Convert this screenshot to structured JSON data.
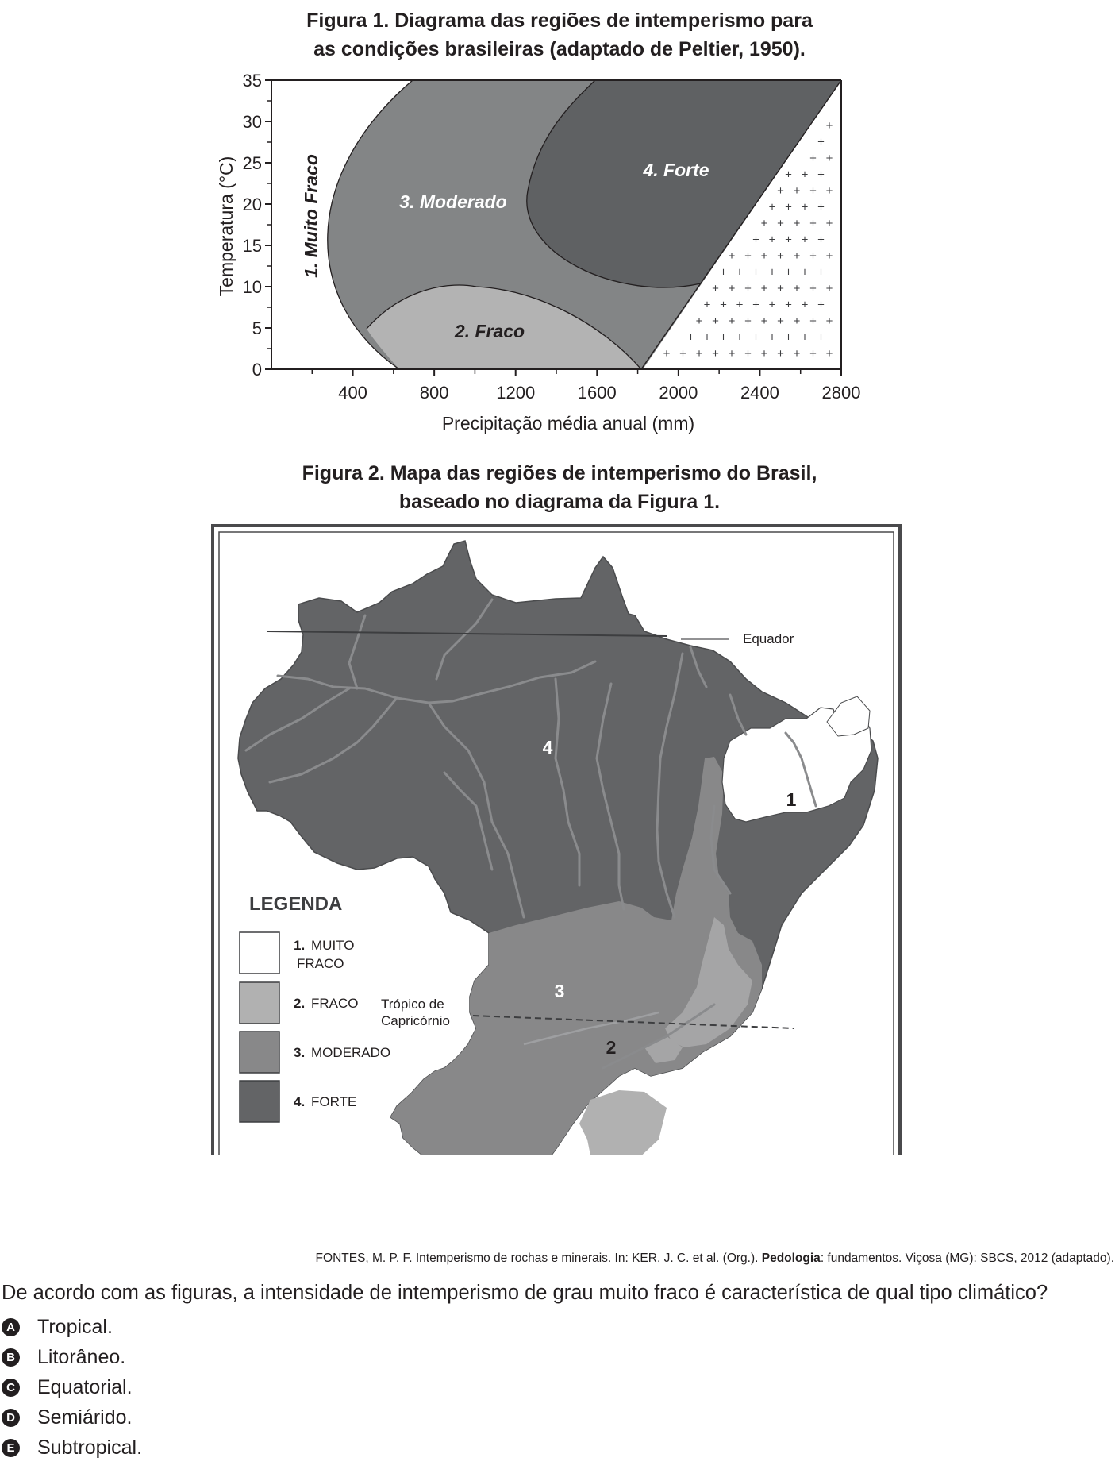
{
  "figure1": {
    "title_line1": "Figura 1. Diagrama das regiões de intemperismo para",
    "title_line2": "as condições brasileiras (adaptado de Peltier, 1950).",
    "ylabel": "Temperatura (°C)",
    "xlabel": "Precipitação média anual (mm)",
    "y_ticks": [
      "0",
      "5",
      "10",
      "15",
      "20",
      "25",
      "30",
      "35"
    ],
    "x_ticks": [
      "400",
      "800",
      "1200",
      "1600",
      "2000",
      "2400",
      "2800"
    ],
    "regions": {
      "r1": "1. Muito Fraco",
      "r2": "2. Fraco",
      "r3": "3. Moderado",
      "r4": "4. Forte"
    },
    "colors": {
      "r2": "#b3b3b3",
      "r3": "#838586",
      "r4": "#5f6163",
      "axis": "#231f20"
    }
  },
  "chart_data": {
    "type": "area",
    "title": "Figura 1. Diagrama das regiões de intemperismo para as condições brasileiras (adaptado de Peltier, 1950).",
    "xlabel": "Precipitação média anual (mm)",
    "ylabel": "Temperatura (°C)",
    "xlim": [
      0,
      2800
    ],
    "ylim": [
      0,
      35
    ],
    "x_ticks": [
      400,
      800,
      1200,
      1600,
      2000,
      2400,
      2800
    ],
    "y_ticks": [
      0,
      5,
      10,
      15,
      20,
      25,
      30,
      35
    ],
    "series": [
      {
        "name": "1. Muito Fraco",
        "region_points": [
          [
            0,
            0
          ],
          [
            610,
            0
          ],
          [
            350,
            20
          ],
          [
            700,
            35
          ],
          [
            0,
            35
          ]
        ]
      },
      {
        "name": "2. Fraco",
        "region_points": [
          [
            470,
            5
          ],
          [
            930,
            10
          ],
          [
            1820,
            0
          ],
          [
            610,
            0
          ]
        ]
      },
      {
        "name": "3. Moderado",
        "region_points": [
          [
            610,
            0
          ],
          [
            350,
            20
          ],
          [
            700,
            35
          ],
          [
            1600,
            35
          ],
          [
            1270,
            20
          ],
          [
            2120,
            10
          ],
          [
            1820,
            0
          ]
        ]
      },
      {
        "name": "4. Forte",
        "region_points": [
          [
            1600,
            35
          ],
          [
            2800,
            35
          ],
          [
            2120,
            10
          ],
          [
            1270,
            20
          ]
        ]
      }
    ],
    "legend": "none",
    "grid": false
  },
  "figure2": {
    "title_line1": "Figura 2. Mapa das regiões de intemperismo do Brasil,",
    "title_line2": "baseado no diagrama da Figura 1.",
    "equator_label": "Equador",
    "tropic_label_1": "Trópico de",
    "tropic_label_2": "Capricórnio",
    "region_numbers": [
      "1",
      "2",
      "3",
      "4"
    ],
    "legend_title": "LEGENDA",
    "legend": [
      {
        "num": "1.",
        "text": "MUITO",
        "text2": "FRACO",
        "color": "#ffffff"
      },
      {
        "num": "2.",
        "text": "FRACO",
        "color": "#b1b1b1"
      },
      {
        "num": "3.",
        "text": "MODERADO",
        "color": "#888889"
      },
      {
        "num": "4.",
        "text": "FORTE",
        "color": "#636466"
      }
    ]
  },
  "source": {
    "part1": "FONTES, M. P. F. Intemperismo de rochas e minerais. In: KER, J. C. et al. (Org.). ",
    "bold": "Pedologia",
    "part2": ": fundamentos. Viçosa (MG): SBCS, 2012 (adaptado)."
  },
  "question": "De acordo com as figuras, a intensidade de intemperismo de grau muito fraco é característica de qual tipo climático?",
  "options": [
    {
      "letter": "A",
      "text": "Tropical."
    },
    {
      "letter": "B",
      "text": "Litorâneo."
    },
    {
      "letter": "C",
      "text": "Equatorial."
    },
    {
      "letter": "D",
      "text": "Semiárido."
    },
    {
      "letter": "E",
      "text": "Subtropical."
    }
  ]
}
